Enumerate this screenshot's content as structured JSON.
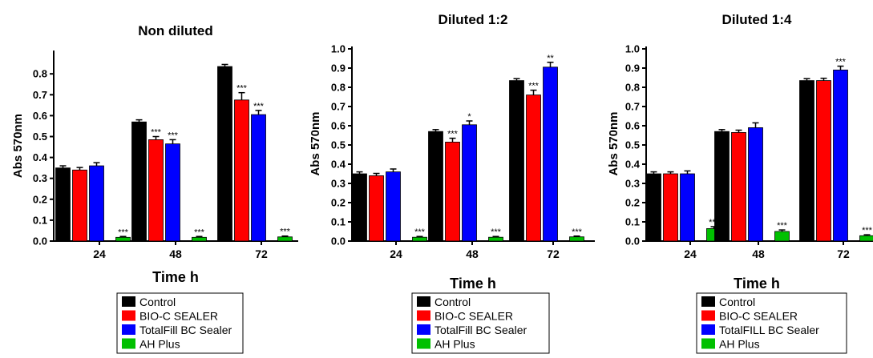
{
  "chart_data": [
    {
      "type": "bar",
      "title": "Non diluted",
      "xlabel": "Time h",
      "ylabel": "Abs 570nm",
      "categories": [
        "24",
        "48",
        "72"
      ],
      "yticks": [
        "0.0",
        "0.1",
        "0.2",
        "0.3",
        "0.4",
        "0.5",
        "0.6",
        "0.7",
        "0.8"
      ],
      "ylim": [
        0,
        0.9
      ],
      "series": [
        {
          "name": "Control",
          "color": "#000000",
          "values": [
            0.35,
            0.57,
            0.835
          ],
          "errors": [
            0.01,
            0.01,
            0.01
          ],
          "sig": [
            "",
            "",
            ""
          ]
        },
        {
          "name": "BIO-C SEALER",
          "color": "#ff0000",
          "values": [
            0.34,
            0.485,
            0.675
          ],
          "errors": [
            0.012,
            0.015,
            0.035
          ],
          "sig": [
            "",
            "***",
            "***"
          ]
        },
        {
          "name": "TotalFill BC Sealer",
          "color": "#0000ff",
          "values": [
            0.36,
            0.465,
            0.605
          ],
          "errors": [
            0.015,
            0.02,
            0.02
          ],
          "sig": [
            "",
            "***",
            "***"
          ]
        },
        {
          "name": "AH Plus",
          "color": "#00c000",
          "values": [
            0.018,
            0.018,
            0.02
          ],
          "errors": [
            0.004,
            0.004,
            0.004
          ],
          "sig": [
            "***",
            "***",
            "***"
          ]
        }
      ],
      "legend": "bottom"
    },
    {
      "type": "bar",
      "title": "Diluted 1:2",
      "xlabel": "Time h",
      "ylabel": "Abs 570nm",
      "categories": [
        "24",
        "48",
        "72"
      ],
      "yticks": [
        "0.0",
        "0.1",
        "0.2",
        "0.3",
        "0.4",
        "0.5",
        "0.6",
        "0.7",
        "0.8",
        "0.9",
        "1.0"
      ],
      "ylim": [
        0,
        1.0
      ],
      "series": [
        {
          "name": "Control",
          "color": "#000000",
          "values": [
            0.35,
            0.57,
            0.835
          ],
          "errors": [
            0.01,
            0.01,
            0.01
          ],
          "sig": [
            "",
            "",
            ""
          ]
        },
        {
          "name": "BIO-C SEALER",
          "color": "#ff0000",
          "values": [
            0.34,
            0.515,
            0.76
          ],
          "errors": [
            0.012,
            0.02,
            0.025
          ],
          "sig": [
            "",
            "***",
            "***"
          ]
        },
        {
          "name": "TotalFill BC Sealer",
          "color": "#0000ff",
          "values": [
            0.36,
            0.605,
            0.905
          ],
          "errors": [
            0.015,
            0.02,
            0.025
          ],
          "sig": [
            "",
            "*",
            "**"
          ]
        },
        {
          "name": "AH Plus",
          "color": "#00c000",
          "values": [
            0.02,
            0.02,
            0.022
          ],
          "errors": [
            0.004,
            0.004,
            0.004
          ],
          "sig": [
            "***",
            "***",
            "***"
          ]
        }
      ],
      "legend": "bottom"
    },
    {
      "type": "bar",
      "title": "Diluted 1:4",
      "xlabel": "Time h",
      "ylabel": "Abs 570nm",
      "categories": [
        "24",
        "48",
        "72"
      ],
      "yticks": [
        "0.0",
        "0.1",
        "0.2",
        "0.3",
        "0.4",
        "0.5",
        "0.6",
        "0.7",
        "0.8",
        "0.9",
        "1.0"
      ],
      "ylim": [
        0,
        1.0
      ],
      "series": [
        {
          "name": "Control",
          "color": "#000000",
          "values": [
            0.35,
            0.57,
            0.835
          ],
          "errors": [
            0.01,
            0.01,
            0.01
          ],
          "sig": [
            "",
            "",
            ""
          ]
        },
        {
          "name": "BIO-C SEALER",
          "color": "#ff0000",
          "values": [
            0.35,
            0.565,
            0.835
          ],
          "errors": [
            0.01,
            0.012,
            0.012
          ],
          "sig": [
            "",
            "",
            ""
          ]
        },
        {
          "name": "TotalFILL BC Sealer",
          "color": "#0000ff",
          "values": [
            0.35,
            0.59,
            0.89
          ],
          "errors": [
            0.015,
            0.025,
            0.02
          ],
          "sig": [
            "",
            "",
            "***"
          ]
        },
        {
          "name": "AH Plus",
          "color": "#00c000",
          "values": [
            0.065,
            0.05,
            0.028
          ],
          "errors": [
            0.01,
            0.008,
            0.005
          ],
          "sig": [
            "***",
            "***",
            "***"
          ]
        }
      ],
      "legend": "bottom"
    }
  ]
}
